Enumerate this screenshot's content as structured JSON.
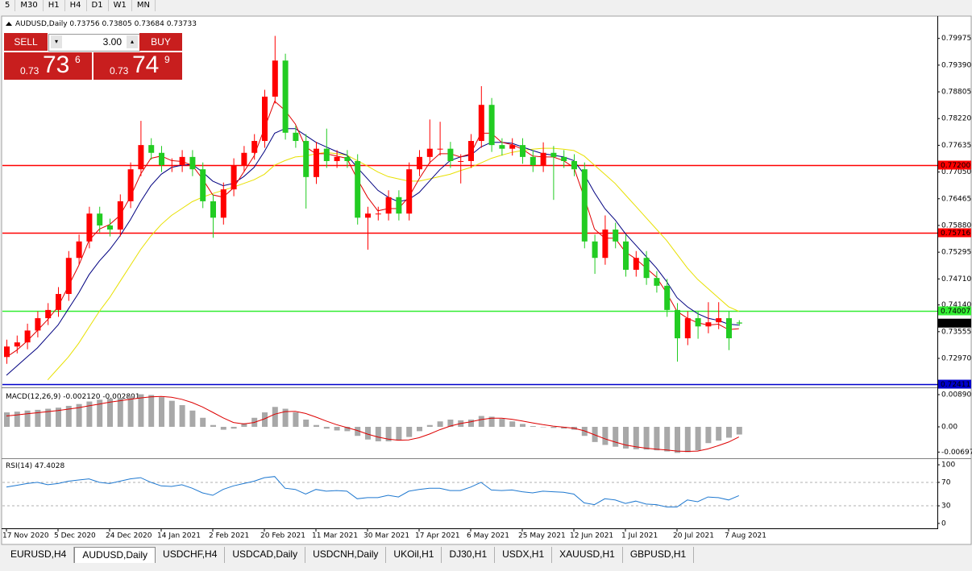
{
  "toolbar": {
    "timeframes": [
      "5",
      "M30",
      "H1",
      "H4",
      "D1",
      "W1",
      "MN"
    ]
  },
  "trade_panel": {
    "sell": "SELL",
    "buy": "BUY",
    "lot": "3.00",
    "bid_prefix": "0.73",
    "bid_big": "73",
    "bid_small": "6",
    "ask_prefix": "0.73",
    "ask_big": "74",
    "ask_small": "9"
  },
  "tabs": {
    "items": [
      "EURUSD,H4",
      "AUDUSD,Daily",
      "USDCHF,H4",
      "USDCAD,Daily",
      "USDCNH,Daily",
      "UKOil,H1",
      "DJ30,H1",
      "USDX,H1",
      "XAUUSD,H1",
      "GBPUSD,H1"
    ],
    "active": 1
  },
  "chart_data": [
    {
      "type": "candlestick",
      "title": "AUDUSD,Daily",
      "up_color": "#ff0000",
      "down_color": "#22cc22",
      "categories": [
        "17 Nov 2020",
        null,
        null,
        null,
        null,
        "5 Dec 2020",
        null,
        null,
        null,
        null,
        "24 Dec 2020",
        null,
        null,
        null,
        null,
        "14 Jan 2021",
        null,
        null,
        null,
        null,
        "2 Feb 2021",
        null,
        null,
        null,
        null,
        "20 Feb 2021",
        null,
        null,
        null,
        null,
        "11 Mar 2021",
        null,
        null,
        null,
        null,
        "30 Mar 2021",
        null,
        null,
        null,
        null,
        "17 Apr 2021",
        null,
        null,
        null,
        null,
        "6 May 2021",
        null,
        null,
        null,
        null,
        "25 May 2021",
        null,
        null,
        null,
        null,
        "12 Jun 2021",
        null,
        null,
        null,
        null,
        "1 Jul 2021",
        null,
        null,
        null,
        null,
        "20 Jul 2021",
        null,
        null,
        null,
        null,
        "7 Aug 2021",
        null
      ],
      "open": [
        0.73,
        0.7323,
        0.7332,
        0.7358,
        0.7385,
        0.7403,
        0.7438,
        0.7517,
        0.7553,
        0.7614,
        0.7588,
        0.7579,
        0.7641,
        0.7711,
        0.7764,
        0.7747,
        0.772,
        0.772,
        0.7738,
        0.7711,
        0.7641,
        0.7605,
        0.7667,
        0.772,
        0.7747,
        0.7773,
        0.787,
        0.7949,
        0.7791,
        0.7773,
        0.7694,
        0.7756,
        0.7729,
        0.7738,
        0.7729,
        0.7605,
        0.7614,
        0.7614,
        0.765,
        0.7614,
        0.7711,
        0.7738,
        0.7756,
        0.7756,
        0.7729,
        0.7729,
        0.7773,
        0.7852,
        0.7764,
        0.7756,
        0.7764,
        0.7738,
        0.772,
        0.7747,
        0.7738,
        0.7729,
        0.7711,
        0.7553,
        0.7517,
        0.7579,
        0.7553,
        0.7491,
        0.7517,
        0.7473,
        0.7456,
        0.7403,
        0.7341,
        0.7385,
        0.7367,
        0.7376,
        0.7385,
        0.73756
      ],
      "high": [
        0.7338,
        0.7347,
        0.7373,
        0.74,
        0.7418,
        0.7453,
        0.7532,
        0.7568,
        0.7629,
        0.7629,
        0.7603,
        0.7656,
        0.7726,
        0.7817,
        0.7779,
        0.7762,
        0.7735,
        0.7753,
        0.7753,
        0.7726,
        0.7656,
        0.7682,
        0.7735,
        0.7762,
        0.7788,
        0.7885,
        0.8003,
        0.7964,
        0.7806,
        0.7788,
        0.7771,
        0.78,
        0.7753,
        0.7753,
        0.7744,
        0.7629,
        0.7629,
        0.7665,
        0.7665,
        0.7726,
        0.7753,
        0.782,
        0.7815,
        0.7771,
        0.7744,
        0.7788,
        0.7893,
        0.7867,
        0.7779,
        0.7779,
        0.7779,
        0.7753,
        0.777,
        0.7762,
        0.7753,
        0.7744,
        0.7726,
        0.7568,
        0.761,
        0.7594,
        0.7568,
        0.7532,
        0.7532,
        0.7488,
        0.7471,
        0.7418,
        0.74,
        0.74,
        0.742,
        0.742,
        0.74,
        0.73805
      ],
      "low": [
        0.7285,
        0.7308,
        0.7317,
        0.7343,
        0.737,
        0.7388,
        0.7423,
        0.7502,
        0.7538,
        0.7573,
        0.7564,
        0.7564,
        0.7626,
        0.7696,
        0.7732,
        0.7705,
        0.7705,
        0.7705,
        0.7696,
        0.7626,
        0.7561,
        0.759,
        0.7652,
        0.7705,
        0.7732,
        0.7758,
        0.7855,
        0.7776,
        0.7758,
        0.7625,
        0.7679,
        0.7714,
        0.7714,
        0.7714,
        0.759,
        0.7535,
        0.7599,
        0.7599,
        0.7599,
        0.7599,
        0.7696,
        0.7723,
        0.7741,
        0.7714,
        0.768,
        0.7714,
        0.7758,
        0.7749,
        0.7741,
        0.7741,
        0.7723,
        0.7705,
        0.7705,
        0.7644,
        0.7714,
        0.7696,
        0.7538,
        0.7482,
        0.7502,
        0.7538,
        0.7476,
        0.7476,
        0.7458,
        0.7441,
        0.7388,
        0.729,
        0.7326,
        0.734,
        0.7352,
        0.7361,
        0.7315,
        0.73684
      ],
      "close": [
        0.7323,
        0.7332,
        0.7358,
        0.7385,
        0.7403,
        0.7438,
        0.7517,
        0.7553,
        0.7614,
        0.7588,
        0.7579,
        0.7641,
        0.7711,
        0.7764,
        0.7747,
        0.772,
        0.772,
        0.7738,
        0.7711,
        0.7641,
        0.7605,
        0.7667,
        0.772,
        0.7747,
        0.7773,
        0.787,
        0.7949,
        0.7791,
        0.7773,
        0.7694,
        0.7756,
        0.7729,
        0.7738,
        0.7729,
        0.7605,
        0.7614,
        0.7614,
        0.765,
        0.7614,
        0.7711,
        0.7738,
        0.7756,
        0.7756,
        0.7729,
        0.7729,
        0.7773,
        0.7852,
        0.7764,
        0.7756,
        0.7764,
        0.7738,
        0.772,
        0.7747,
        0.7738,
        0.7729,
        0.7711,
        0.7553,
        0.7517,
        0.7579,
        0.7553,
        0.7491,
        0.7517,
        0.7473,
        0.7456,
        0.7403,
        0.7341,
        0.7385,
        0.7367,
        0.7376,
        0.7385,
        0.7341,
        0.73733
      ],
      "series": [
        {
          "color": "#e8e000",
          "values": [
            null,
            null,
            null,
            null,
            0.725,
            0.7275,
            0.73,
            0.733,
            0.7365,
            0.74,
            0.743,
            0.7465,
            0.75,
            0.7535,
            0.7565,
            0.759,
            0.761,
            0.7625,
            0.764,
            0.765,
            0.7658,
            0.7665,
            0.7672,
            0.768,
            0.7688,
            0.77,
            0.772,
            0.773,
            0.7738,
            0.774,
            0.7745,
            0.7748,
            0.7745,
            0.7742,
            0.773,
            0.7718,
            0.7705,
            0.7695,
            0.769,
            0.7685,
            0.7685,
            0.769,
            0.7695,
            0.77,
            0.7708,
            0.7715,
            0.7725,
            0.7735,
            0.7742,
            0.7748,
            0.7752,
            0.7755,
            0.7757,
            0.7757,
            0.7755,
            0.7752,
            0.774,
            0.772,
            0.77,
            0.768,
            0.7655,
            0.763,
            0.7605,
            0.758,
            0.7555,
            0.7525,
            0.7495,
            0.747,
            0.745,
            0.743,
            0.741,
            0.74
          ]
        },
        {
          "color": "#000080",
          "values": [
            0.726,
            0.728,
            0.73,
            0.732,
            0.7345,
            0.737,
            0.7405,
            0.744,
            0.748,
            0.751,
            0.7535,
            0.7565,
            0.76,
            0.764,
            0.7675,
            0.77,
            0.7715,
            0.772,
            0.7722,
            0.7705,
            0.7685,
            0.7675,
            0.768,
            0.7695,
            0.7715,
            0.775,
            0.779,
            0.78,
            0.78,
            0.7785,
            0.777,
            0.776,
            0.775,
            0.7742,
            0.7715,
            0.769,
            0.7665,
            0.765,
            0.764,
            0.7645,
            0.766,
            0.7685,
            0.771,
            0.773,
            0.7738,
            0.7742,
            0.776,
            0.777,
            0.777,
            0.7768,
            0.776,
            0.7752,
            0.7745,
            0.7742,
            0.7738,
            0.773,
            0.77,
            0.766,
            0.7625,
            0.76,
            0.757,
            0.7545,
            0.752,
            0.7495,
            0.7465,
            0.743,
            0.741,
            0.7395,
            0.7385,
            0.738,
            0.7372,
            0.737
          ]
        },
        {
          "color": "#e00000",
          "values": [
            0.73,
            0.7315,
            0.7335,
            0.7358,
            0.7382,
            0.741,
            0.7455,
            0.75,
            0.7555,
            0.758,
            0.759,
            0.761,
            0.765,
            0.77,
            0.7735,
            0.774,
            0.773,
            0.7728,
            0.772,
            0.769,
            0.7655,
            0.765,
            0.767,
            0.7705,
            0.774,
            0.78,
            0.786,
            0.784,
            0.781,
            0.776,
            0.7745,
            0.7745,
            0.774,
            0.7735,
            0.769,
            0.765,
            0.762,
            0.7625,
            0.7625,
            0.765,
            0.769,
            0.7725,
            0.7745,
            0.7745,
            0.7738,
            0.7745,
            0.779,
            0.779,
            0.777,
            0.7765,
            0.7755,
            0.774,
            0.7738,
            0.7738,
            0.773,
            0.7715,
            0.765,
            0.758,
            0.756,
            0.756,
            0.753,
            0.7515,
            0.7495,
            0.7475,
            0.744,
            0.74,
            0.7385,
            0.7375,
            0.737,
            0.7372,
            0.736,
            0.7362
          ]
        }
      ],
      "levels": [
        {
          "value": 0.772,
          "label": "0.77200",
          "color": "#ff0000"
        },
        {
          "value": 0.75716,
          "label": "0.75716",
          "color": "#ff0000"
        },
        {
          "value": 0.74007,
          "label": "0.74007",
          "color": "#33ee33"
        },
        {
          "value": 0.72411,
          "label": "0.72411",
          "color": "#0000cc"
        }
      ],
      "ylim": [
        0.72353,
        0.80428
      ],
      "yticks": [
        0.79975,
        {
          "value": 0.7939,
          "label": "0.79390"
        },
        0.78805,
        {
          "value": 0.7822,
          "label": "0.78220"
        },
        0.77635,
        {
          "value": 0.7705,
          "label": "0.77050"
        },
        0.76465,
        {
          "value": 0.7588,
          "label": "0.75880"
        },
        0.75295,
        {
          "value": 0.7471,
          "label": "0.74710"
        },
        {
          "value": 0.7414,
          "label": "0.74140"
        },
        0.73555,
        {
          "value": 0.7297,
          "label": "0.72970"
        }
      ]
    },
    {
      "type": "macd",
      "title": "MACD(12,26,9)",
      "readout": [
        "-0.002120",
        "-0.002801"
      ],
      "histogram": {
        "color": "#a8a8a8",
        "values": [
          0.004,
          0.0042,
          0.0045,
          0.0047,
          0.005,
          0.0053,
          0.0058,
          0.0063,
          0.007,
          0.0075,
          0.0078,
          0.008,
          0.0085,
          0.009,
          0.0088,
          0.0082,
          0.0072,
          0.006,
          0.0045,
          0.0025,
          0.0005,
          -0.0008,
          -0.0005,
          0.001,
          0.0025,
          0.004,
          0.0055,
          0.005,
          0.004,
          0.002,
          0.0005,
          -0.0005,
          -0.001,
          -0.0012,
          -0.0025,
          -0.0035,
          -0.004,
          -0.004,
          -0.0038,
          -0.0028,
          -0.0012,
          0.0005,
          0.0015,
          0.002,
          0.0018,
          0.002,
          0.003,
          0.0028,
          0.0022,
          0.0015,
          0.0008,
          0.0002,
          -0.0001,
          -0.0003,
          -0.0005,
          -0.0008,
          -0.0025,
          -0.0042,
          -0.005,
          -0.0055,
          -0.006,
          -0.0062,
          -0.0063,
          -0.0065,
          -0.0068,
          -0.0072,
          -0.007,
          -0.0065,
          -0.0045,
          -0.0038,
          -0.003,
          -0.00212
        ]
      },
      "signal": {
        "color": "#dd0000",
        "values": [
          0.003,
          0.0033,
          0.0036,
          0.0039,
          0.0042,
          0.0045,
          0.0049,
          0.0053,
          0.0058,
          0.0063,
          0.0068,
          0.0072,
          0.0076,
          0.008,
          0.0083,
          0.0084,
          0.0082,
          0.0076,
          0.0067,
          0.0055,
          0.004,
          0.0025,
          0.0012,
          0.0008,
          0.0012,
          0.0022,
          0.0035,
          0.0042,
          0.0043,
          0.0037,
          0.0027,
          0.0016,
          0.0006,
          -0.0002,
          -0.001,
          -0.002,
          -0.0028,
          -0.0034,
          -0.0037,
          -0.0036,
          -0.003,
          -0.002,
          -0.0008,
          0.0002,
          0.0009,
          0.0014,
          0.002,
          0.0024,
          0.0024,
          0.0021,
          0.0016,
          0.0011,
          0.0006,
          0.0002,
          -0.0001,
          -0.0004,
          -0.0011,
          -0.0022,
          -0.0033,
          -0.0042,
          -0.005,
          -0.0055,
          -0.0059,
          -0.0062,
          -0.0064,
          -0.0067,
          -0.0068,
          -0.0067,
          -0.0061,
          -0.0052,
          -0.0042,
          -0.002801
        ]
      },
      "ylim": [
        -0.00846,
        0.01046
      ],
      "yticks": [
        0.008903,
        {
          "value": 0,
          "label": "0.00"
        },
        -0.006977
      ]
    },
    {
      "type": "line",
      "title": "RSI(14)",
      "color": "#1e78d0",
      "values": [
        62,
        65,
        68,
        70,
        66,
        68,
        72,
        74,
        76,
        70,
        68,
        72,
        76,
        78,
        70,
        64,
        63,
        66,
        60,
        52,
        48,
        58,
        64,
        68,
        72,
        78,
        80,
        60,
        58,
        50,
        58,
        55,
        56,
        55,
        42,
        44,
        44,
        48,
        45,
        55,
        58,
        60,
        60,
        56,
        56,
        62,
        70,
        57,
        56,
        57,
        54,
        52,
        55,
        54,
        53,
        50,
        35,
        32,
        42,
        40,
        34,
        38,
        33,
        32,
        28,
        28,
        40,
        37,
        45,
        44,
        40,
        47.4028
      ],
      "dashed_levels": [
        70,
        30
      ],
      "ylim": [
        -7,
        107
      ],
      "yticks": [
        100,
        70,
        30,
        0
      ]
    }
  ]
}
